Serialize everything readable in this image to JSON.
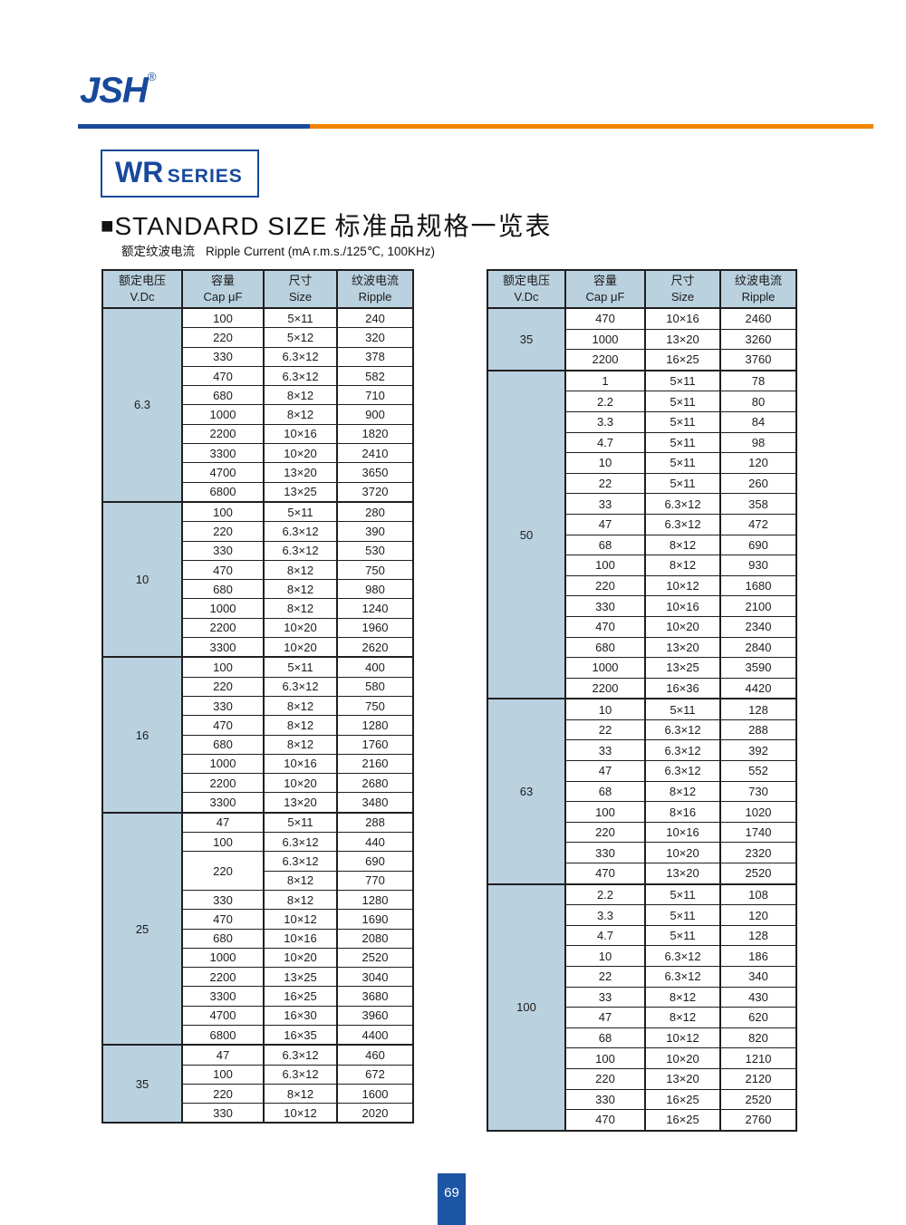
{
  "header": {
    "logo_text": "JSH",
    "registered_mark": "®",
    "series_name": "WR",
    "series_suffix": "SERIES",
    "section_marker": "■",
    "section_title_en": "STANDARD SIZE",
    "section_title_cn": "标准品规格一览表",
    "ripple_note_cn": "额定纹波电流",
    "ripple_note_en": "Ripple Current (mA r.m.s./125℃, 100KHz)"
  },
  "footer": {
    "page_number": "69"
  },
  "colors": {
    "brand_blue": "#17499c",
    "accent_orange": "#f08300",
    "table_header_bg": "#bad1df",
    "table_border": "#1f1f1f",
    "footer_blue": "#1b55a4"
  },
  "table_headers": {
    "voltage_cn": "额定电压",
    "voltage_en": "V.Dc",
    "cap_cn": "容量",
    "cap_en": "Cap μF",
    "size_cn": "尺寸",
    "size_en": "Size",
    "ripple_cn": "纹波电流",
    "ripple_en": "Ripple"
  },
  "tables": [
    {
      "name": "left",
      "groups": [
        {
          "voltage": "6.3",
          "rows": [
            [
              "100",
              "5×11",
              "240"
            ],
            [
              "220",
              "5×12",
              "320"
            ],
            [
              "330",
              "6.3×12",
              "378"
            ],
            [
              "470",
              "6.3×12",
              "582"
            ],
            [
              "680",
              "8×12",
              "710"
            ],
            [
              "1000",
              "8×12",
              "900"
            ],
            [
              "2200",
              "10×16",
              "1820"
            ],
            [
              "3300",
              "10×20",
              "2410"
            ],
            [
              "4700",
              "13×20",
              "3650"
            ],
            [
              "6800",
              "13×25",
              "3720"
            ]
          ]
        },
        {
          "voltage": "10",
          "rows": [
            [
              "100",
              "5×11",
              "280"
            ],
            [
              "220",
              "6.3×12",
              "390"
            ],
            [
              "330",
              "6.3×12",
              "530"
            ],
            [
              "470",
              "8×12",
              "750"
            ],
            [
              "680",
              "8×12",
              "980"
            ],
            [
              "1000",
              "8×12",
              "1240"
            ],
            [
              "2200",
              "10×20",
              "1960"
            ],
            [
              "3300",
              "10×20",
              "2620"
            ]
          ]
        },
        {
          "voltage": "16",
          "rows": [
            [
              "100",
              "5×11",
              "400"
            ],
            [
              "220",
              "6.3×12",
              "580"
            ],
            [
              "330",
              "8×12",
              "750"
            ],
            [
              "470",
              "8×12",
              "1280"
            ],
            [
              "680",
              "8×12",
              "1760"
            ],
            [
              "1000",
              "10×16",
              "2160"
            ],
            [
              "2200",
              "10×20",
              "2680"
            ],
            [
              "3300",
              "13×20",
              "3480"
            ]
          ]
        },
        {
          "voltage": "25",
          "rows": [
            [
              "47",
              "5×11",
              "288"
            ],
            [
              "100",
              "6.3×12",
              "440"
            ],
            {
              "cap": "220",
              "span": 2,
              "size": "6.3×12",
              "ripple": "690"
            },
            {
              "cap": null,
              "size": "8×12",
              "ripple": "770"
            },
            [
              "330",
              "8×12",
              "1280"
            ],
            [
              "470",
              "10×12",
              "1690"
            ],
            [
              "680",
              "10×16",
              "2080"
            ],
            [
              "1000",
              "10×20",
              "2520"
            ],
            [
              "2200",
              "13×25",
              "3040"
            ],
            [
              "3300",
              "16×25",
              "3680"
            ],
            [
              "4700",
              "16×30",
              "3960"
            ],
            [
              "6800",
              "16×35",
              "4400"
            ]
          ]
        },
        {
          "voltage": "35",
          "rows": [
            [
              "47",
              "6.3×12",
              "460"
            ],
            [
              "100",
              "6.3×12",
              "672"
            ],
            [
              "220",
              "8×12",
              "1600"
            ],
            [
              "330",
              "10×12",
              "2020"
            ]
          ]
        }
      ]
    },
    {
      "name": "right",
      "groups": [
        {
          "voltage": "35",
          "rows": [
            [
              "470",
              "10×16",
              "2460"
            ],
            [
              "1000",
              "13×20",
              "3260"
            ],
            [
              "2200",
              "16×25",
              "3760"
            ]
          ]
        },
        {
          "voltage": "50",
          "rows": [
            [
              "1",
              "5×11",
              "78"
            ],
            [
              "2.2",
              "5×11",
              "80"
            ],
            [
              "3.3",
              "5×11",
              "84"
            ],
            [
              "4.7",
              "5×11",
              "98"
            ],
            [
              "10",
              "5×11",
              "120"
            ],
            [
              "22",
              "5×11",
              "260"
            ],
            [
              "33",
              "6.3×12",
              "358"
            ],
            [
              "47",
              "6.3×12",
              "472"
            ],
            [
              "68",
              "8×12",
              "690"
            ],
            [
              "100",
              "8×12",
              "930"
            ],
            [
              "220",
              "10×12",
              "1680"
            ],
            [
              "330",
              "10×16",
              "2100"
            ],
            [
              "470",
              "10×20",
              "2340"
            ],
            [
              "680",
              "13×20",
              "2840"
            ],
            [
              "1000",
              "13×25",
              "3590"
            ],
            [
              "2200",
              "16×36",
              "4420"
            ]
          ]
        },
        {
          "voltage": "63",
          "rows": [
            [
              "10",
              "5×11",
              "128"
            ],
            [
              "22",
              "6.3×12",
              "288"
            ],
            [
              "33",
              "6.3×12",
              "392"
            ],
            [
              "47",
              "6.3×12",
              "552"
            ],
            [
              "68",
              "8×12",
              "730"
            ],
            [
              "100",
              "8×16",
              "1020"
            ],
            [
              "220",
              "10×16",
              "1740"
            ],
            [
              "330",
              "10×20",
              "2320"
            ],
            [
              "470",
              "13×20",
              "2520"
            ]
          ]
        },
        {
          "voltage": "100",
          "rows": [
            [
              "2.2",
              "5×11",
              "108"
            ],
            [
              "3.3",
              "5×11",
              "120"
            ],
            [
              "4.7",
              "5×11",
              "128"
            ],
            [
              "10",
              "6.3×12",
              "186"
            ],
            [
              "22",
              "6.3×12",
              "340"
            ],
            [
              "33",
              "8×12",
              "430"
            ],
            [
              "47",
              "8×12",
              "620"
            ],
            [
              "68",
              "10×12",
              "820"
            ],
            [
              "100",
              "10×20",
              "1210"
            ],
            [
              "220",
              "13×20",
              "2120"
            ],
            [
              "330",
              "16×25",
              "2520"
            ],
            [
              "470",
              "16×25",
              "2760"
            ]
          ]
        }
      ]
    }
  ]
}
